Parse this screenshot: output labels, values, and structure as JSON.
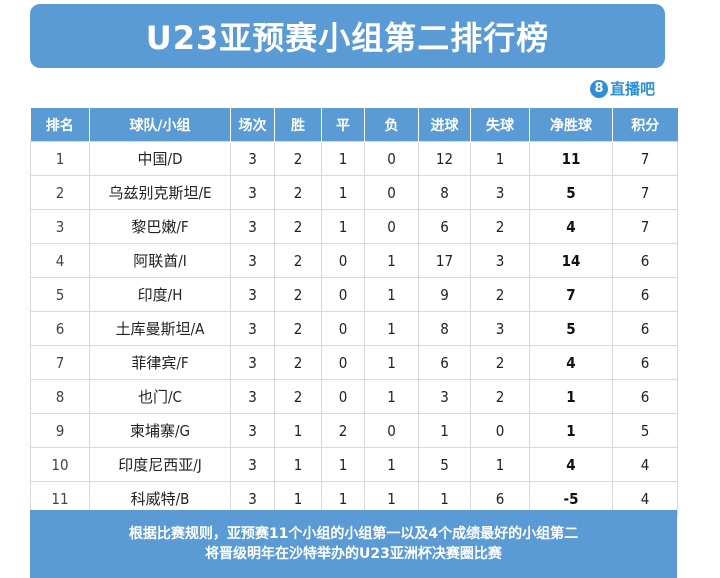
{
  "header": {
    "title": "U23亚预赛小组第二排行榜"
  },
  "logo": {
    "icon": "8",
    "text": "直播吧"
  },
  "table": {
    "columns": [
      "排名",
      "球队/小组",
      "场次",
      "胜",
      "平",
      "负",
      "进球",
      "失球",
      "净胜球",
      "积分"
    ],
    "rows": [
      {
        "rank": "1",
        "team": "中国/D",
        "played": "3",
        "won": "2",
        "drawn": "1",
        "lost": "0",
        "gf": "12",
        "ga": "1",
        "gd": "11",
        "pts": "7"
      },
      {
        "rank": "2",
        "team": "乌兹别克斯坦/E",
        "played": "3",
        "won": "2",
        "drawn": "1",
        "lost": "0",
        "gf": "8",
        "ga": "3",
        "gd": "5",
        "pts": "7"
      },
      {
        "rank": "3",
        "team": "黎巴嫩/F",
        "played": "3",
        "won": "2",
        "drawn": "1",
        "lost": "0",
        "gf": "6",
        "ga": "2",
        "gd": "4",
        "pts": "7"
      },
      {
        "rank": "4",
        "team": "阿联酋/I",
        "played": "3",
        "won": "2",
        "drawn": "0",
        "lost": "1",
        "gf": "17",
        "ga": "3",
        "gd": "14",
        "pts": "6"
      },
      {
        "rank": "5",
        "team": "印度/H",
        "played": "3",
        "won": "2",
        "drawn": "0",
        "lost": "1",
        "gf": "9",
        "ga": "2",
        "gd": "7",
        "pts": "6"
      },
      {
        "rank": "6",
        "team": "土库曼斯坦/A",
        "played": "3",
        "won": "2",
        "drawn": "0",
        "lost": "1",
        "gf": "8",
        "ga": "3",
        "gd": "5",
        "pts": "6"
      },
      {
        "rank": "7",
        "team": "菲律宾/F",
        "played": "3",
        "won": "2",
        "drawn": "0",
        "lost": "1",
        "gf": "6",
        "ga": "2",
        "gd": "4",
        "pts": "6"
      },
      {
        "rank": "8",
        "team": "也门/C",
        "played": "3",
        "won": "2",
        "drawn": "0",
        "lost": "1",
        "gf": "3",
        "ga": "2",
        "gd": "1",
        "pts": "6"
      },
      {
        "rank": "9",
        "team": "柬埔寨/G",
        "played": "3",
        "won": "1",
        "drawn": "2",
        "lost": "0",
        "gf": "1",
        "ga": "0",
        "gd": "1",
        "pts": "5"
      },
      {
        "rank": "10",
        "team": "印度尼西亚/J",
        "played": "3",
        "won": "1",
        "drawn": "1",
        "lost": "1",
        "gf": "5",
        "ga": "1",
        "gd": "4",
        "pts": "4"
      },
      {
        "rank": "11",
        "team": "科威特/B",
        "played": "3",
        "won": "1",
        "drawn": "1",
        "lost": "1",
        "gf": "1",
        "ga": "6",
        "gd": "-5",
        "pts": "4"
      }
    ]
  },
  "footer": {
    "line1": "根据比赛规则，亚预赛11个小组的小组第一以及4个成绩最好的小组第二",
    "line2": "将晋级明年在沙特举办的U23亚洲杯决赛圈比赛"
  },
  "colors": {
    "accent": "#5b9bd5",
    "logo": "#2f8ed8"
  }
}
